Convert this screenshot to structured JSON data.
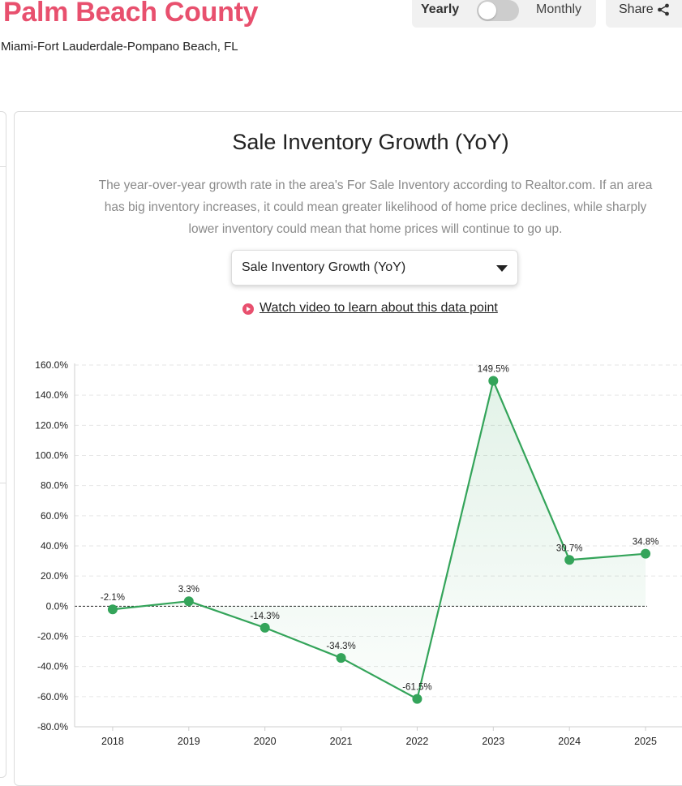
{
  "header": {
    "title": "Palm Beach County",
    "subtitle": "Miami-Fort Lauderdale-Pompano Beach, FL",
    "toggle_left": "Yearly",
    "toggle_right": "Monthly",
    "share_label": "Share"
  },
  "card": {
    "title": "Sale Inventory Growth (YoY)",
    "description": "The year-over-year growth rate in the area's For Sale Inventory according to Realtor.com. If an area has big inventory increases, it could mean greater likelihood of home price declines, while sharply lower inventory could mean that home prices will continue to go up.",
    "select_value": "Sale Inventory Growth (YoY)",
    "video_link": "Watch video to learn about this data point"
  },
  "colors": {
    "brand": "#e8506e",
    "series": "#34a45a"
  },
  "chart_data": {
    "type": "line",
    "categories": [
      "2018",
      "2019",
      "2020",
      "2021",
      "2022",
      "2023",
      "2024",
      "2025"
    ],
    "values": [
      -2.1,
      3.3,
      -14.3,
      -34.3,
      -61.5,
      149.5,
      30.7,
      34.8
    ],
    "data_labels": [
      "-2.1%",
      "3.3%",
      "-14.3%",
      "-34.3%",
      "-61.5%",
      "149.5%",
      "30.7%",
      "34.8%"
    ],
    "ylim": [
      -80,
      160
    ],
    "yticks": [
      160,
      140,
      120,
      100,
      80,
      60,
      40,
      20,
      0,
      -20,
      -40,
      -60,
      -80
    ],
    "ytick_labels": [
      "160.0%",
      "140.0%",
      "120.0%",
      "100.0%",
      "80.0%",
      "60.0%",
      "40.0%",
      "20.0%",
      "0.0%",
      "-20.0%",
      "-40.0%",
      "-60.0%",
      "-80.0%"
    ],
    "grid": true,
    "zero_line": "dashed",
    "fill": "area to zero"
  }
}
